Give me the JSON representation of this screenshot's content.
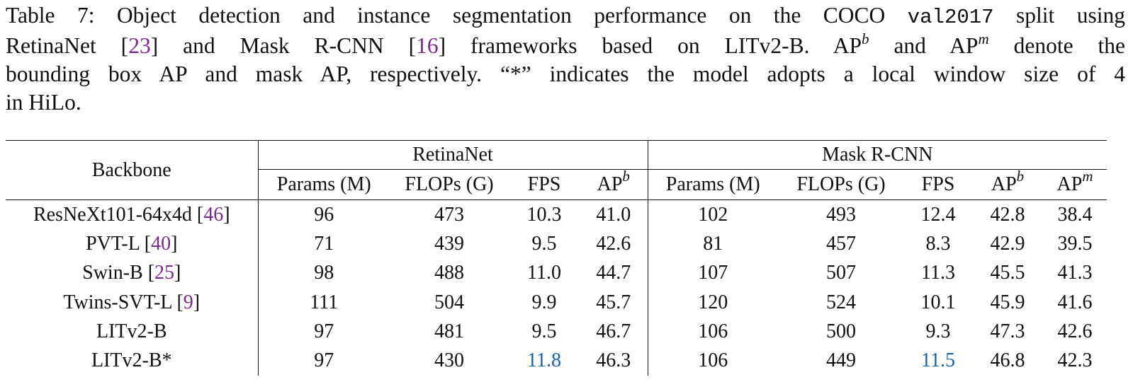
{
  "caption": {
    "line1_prefix": "Table 7: Object detection and instance segmentation performance on the COCO ",
    "line1_code": "val2017",
    "line1_suffix": " split using",
    "line2_a": "RetinaNet [",
    "line2_ref1": "23",
    "line2_b": "] and Mask R-CNN [",
    "line2_ref2": "16",
    "line2_c": "] frameworks based on LITv2-B. AP",
    "line2_sup1": "b",
    "line2_d": " and AP",
    "line2_sup2": "m",
    "line2_e": " denote the",
    "line3": "bounding box AP and mask AP, respectively. “*” indicates the model adopts a local window size of 4",
    "line4": "in HiLo."
  },
  "table": {
    "backbone_header": "Backbone",
    "group_retinanet": "RetinaNet",
    "group_maskrcnn": "Mask R-CNN",
    "columns": {
      "params": "Params (M)",
      "flops": "FLOPs (G)",
      "fps": "FPS",
      "ap": "AP",
      "sup_b": "b",
      "sup_m": "m"
    },
    "rows": [
      {
        "name": "ResNeXt101-64x4d [",
        "ref": "46",
        "close": "]",
        "r_params": "96",
        "r_flops": "473",
        "r_fps": "10.3",
        "r_ap": "41.0",
        "m_params": "102",
        "m_flops": "493",
        "m_fps": "12.4",
        "m_apb": "42.8",
        "m_apm": "38.4"
      },
      {
        "name": "PVT-L [",
        "ref": "40",
        "close": "]",
        "r_params": "71",
        "r_flops": "439",
        "r_fps": "9.5",
        "r_ap": "42.6",
        "m_params": "81",
        "m_flops": "457",
        "m_fps": "8.3",
        "m_apb": "42.9",
        "m_apm": "39.5"
      },
      {
        "name": "Swin-B [",
        "ref": "25",
        "close": "]",
        "r_params": "98",
        "r_flops": "488",
        "r_fps": "11.0",
        "r_ap": "44.7",
        "m_params": "107",
        "m_flops": "507",
        "m_fps": "11.3",
        "m_apb": "45.5",
        "m_apm": "41.3"
      },
      {
        "name": "Twins-SVT-L [",
        "ref": "9",
        "close": "]",
        "r_params": "111",
        "r_flops": "504",
        "r_fps": "9.9",
        "r_ap": "45.7",
        "m_params": "120",
        "m_flops": "524",
        "m_fps": "10.1",
        "m_apb": "45.9",
        "m_apm": "41.6"
      },
      {
        "name": "LITv2-B",
        "r_params": "97",
        "r_flops": "481",
        "r_fps": "9.5",
        "r_ap": "46.7",
        "m_params": "106",
        "m_flops": "500",
        "m_fps": "9.3",
        "m_apb": "47.3",
        "m_apm": "42.6"
      },
      {
        "name": "LITv2-B*",
        "r_params": "97",
        "r_flops": "430",
        "r_fps": "11.8",
        "r_ap": "46.3",
        "m_params": "106",
        "m_flops": "449",
        "m_fps": "11.5",
        "m_apb": "46.8",
        "m_apm": "42.3"
      }
    ]
  },
  "colors": {
    "citation": "#7a2a8a",
    "fps_highlight": "#1f5fa8",
    "text": "#111111"
  }
}
